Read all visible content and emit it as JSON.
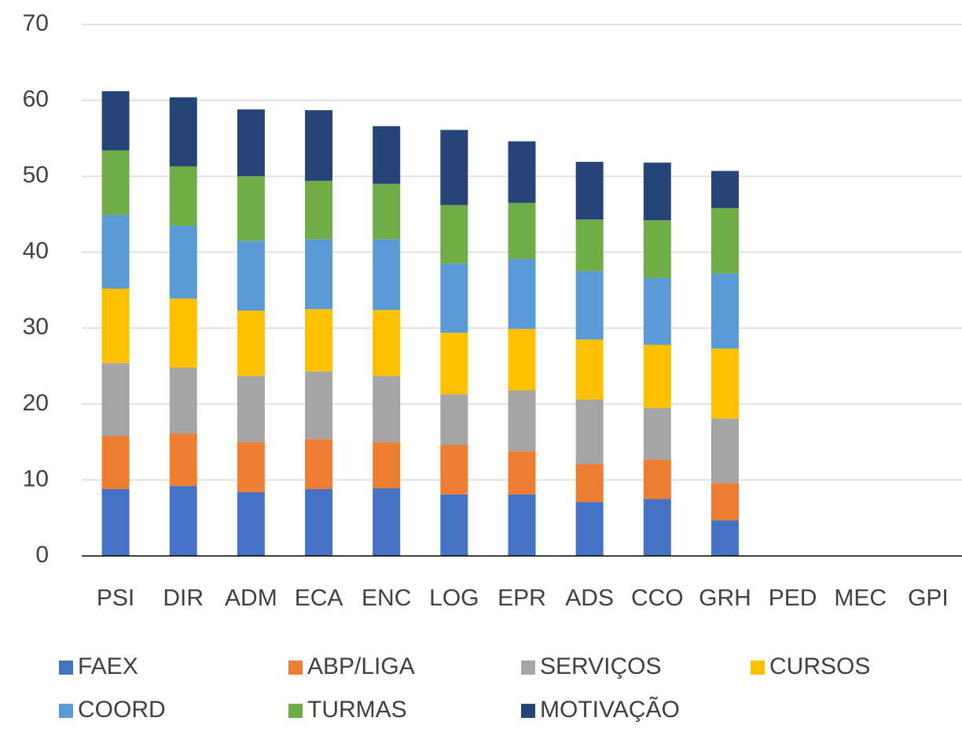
{
  "chart_data": {
    "type": "stacked_bar",
    "categories": [
      "PSI",
      "DIR",
      "ADM",
      "ECA",
      "ENC",
      "LOG",
      "EPR",
      "ADS",
      "CCO",
      "GRH",
      "PED",
      "MEC",
      "GPI"
    ],
    "series": [
      {
        "name": "FAEX",
        "color": "#4472c4",
        "values": [
          8.8,
          9.2,
          8.4,
          8.8,
          8.9,
          8.1,
          8.1,
          7.1,
          7.5,
          4.7,
          null,
          null,
          null
        ]
      },
      {
        "name": "ABP/LIGA",
        "color": "#ed7d31",
        "values": [
          7.0,
          6.9,
          6.6,
          6.6,
          6.1,
          6.5,
          5.7,
          5.0,
          5.2,
          4.9,
          null,
          null,
          null
        ]
      },
      {
        "name": "SERVIÇOS",
        "color": "#a5a5a5",
        "values": [
          9.6,
          8.7,
          8.7,
          8.9,
          8.7,
          6.7,
          8.0,
          8.5,
          6.8,
          8.5,
          null,
          null,
          null
        ]
      },
      {
        "name": "CURSOS",
        "color": "#ffc000",
        "values": [
          9.8,
          9.1,
          8.6,
          8.2,
          8.7,
          8.1,
          8.1,
          7.9,
          8.3,
          9.2,
          null,
          null,
          null
        ]
      },
      {
        "name": "COORD",
        "color": "#5b9bd5",
        "values": [
          9.7,
          9.6,
          9.2,
          9.2,
          9.3,
          9.1,
          9.2,
          9.0,
          8.8,
          9.9,
          null,
          null,
          null
        ]
      },
      {
        "name": "TURMAS",
        "color": "#70ad47",
        "values": [
          8.5,
          7.8,
          8.5,
          7.7,
          7.3,
          7.7,
          7.4,
          6.8,
          7.6,
          8.6,
          null,
          null,
          null
        ]
      },
      {
        "name": "MOTIVAÇÃO",
        "color": "#264478",
        "values": [
          7.8,
          9.1,
          8.8,
          9.3,
          7.6,
          9.9,
          8.1,
          7.6,
          7.6,
          4.9,
          null,
          null,
          null
        ]
      }
    ],
    "ylim": [
      0,
      70
    ],
    "yticks": [
      0,
      10,
      20,
      30,
      40,
      50,
      60,
      70
    ],
    "grid": true,
    "legend": "bottom"
  }
}
